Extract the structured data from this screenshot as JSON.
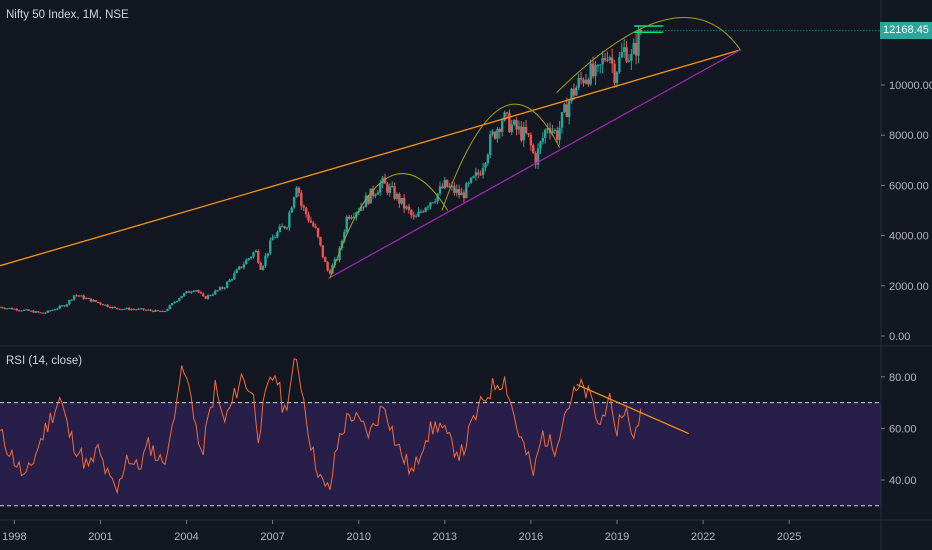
{
  "symbol_title": "Nifty 50 Index, 1M, NSE",
  "indicator_title": "RSI (14, close)",
  "last_price": "12168.45",
  "colors": {
    "background": "#131722",
    "bull": "#26a69a",
    "bear": "#ef5350",
    "trendline_upper": "#f7931a",
    "trendline_lower": "#9c27b0",
    "arc": "#a0a020",
    "resistance": "#00e676",
    "rsi_line": "#f26b38",
    "rsi_band": "#2a1f4e",
    "price_badge": "#2aa79b"
  },
  "chart_data": [
    {
      "type": "candlestick",
      "title": "Nifty 50 Index, 1M, NSE",
      "x_ticks": [
        "1998",
        "2001",
        "2004",
        "2007",
        "2010",
        "2013",
        "2016",
        "2019",
        "2022",
        "2025"
      ],
      "y_ticks": [
        "0.00",
        "2000.00",
        "4000.00",
        "6000.00",
        "8000.00",
        "10000.00"
      ],
      "ylim": [
        0,
        13500
      ],
      "xlim": [
        1997.5,
        2028.2
      ],
      "last_value": 12168.45,
      "price_path": [
        [
          1997.5,
          1150
        ],
        [
          1998.5,
          1000
        ],
        [
          1999.0,
          900
        ],
        [
          1999.8,
          1250
        ],
        [
          2000.1,
          1650
        ],
        [
          2000.6,
          1450
        ],
        [
          2001.0,
          1300
        ],
        [
          2001.5,
          1100
        ],
        [
          2002.5,
          1050
        ],
        [
          2003.2,
          950
        ],
        [
          2003.8,
          1600
        ],
        [
          2004.3,
          1900
        ],
        [
          2004.6,
          1500
        ],
        [
          2005.3,
          1950
        ],
        [
          2006.0,
          2900
        ],
        [
          2006.4,
          3400
        ],
        [
          2006.6,
          2700
        ],
        [
          2007.0,
          3900
        ],
        [
          2007.5,
          4500
        ],
        [
          2007.85,
          6200
        ],
        [
          2008.0,
          5200
        ],
        [
          2008.5,
          4200
        ],
        [
          2008.8,
          3000
        ],
        [
          2008.95,
          2500
        ],
        [
          2009.3,
          3200
        ],
        [
          2009.6,
          4800
        ],
        [
          2010.0,
          5100
        ],
        [
          2010.8,
          6100
        ],
        [
          2011.2,
          5700
        ],
        [
          2011.7,
          5000
        ],
        [
          2011.95,
          4600
        ],
        [
          2012.3,
          5200
        ],
        [
          2012.7,
          5600
        ],
        [
          2013.0,
          6000
        ],
        [
          2013.6,
          5600
        ],
        [
          2014.2,
          6500
        ],
        [
          2014.6,
          7800
        ],
        [
          2015.0,
          8700
        ],
        [
          2015.4,
          8300
        ],
        [
          2015.9,
          7900
        ],
        [
          2016.15,
          7000
        ],
        [
          2016.6,
          8500
        ],
        [
          2016.9,
          8000
        ],
        [
          2017.4,
          9600
        ],
        [
          2017.95,
          10500
        ],
        [
          2018.3,
          10300
        ],
        [
          2018.7,
          11500
        ],
        [
          2018.9,
          10500
        ],
        [
          2019.3,
          11500
        ],
        [
          2019.5,
          11000
        ],
        [
          2019.7,
          11700
        ],
        [
          2019.85,
          12168.45
        ]
      ],
      "annotations": {
        "upper_trendline": [
          [
            1997.5,
            2800
          ],
          [
            2023.3,
            11400
          ]
        ],
        "lower_trendline": [
          [
            2008.95,
            2300
          ],
          [
            2023.3,
            11400
          ]
        ],
        "arcs": [
          [
            [
              2009.0,
              2300
            ],
            [
              2011.0,
              6300
            ],
            [
              2013.1,
              5000
            ]
          ],
          [
            [
              2012.9,
              5000
            ],
            [
              2015.0,
              9100
            ],
            [
              2017.0,
              7500
            ]
          ],
          [
            [
              2016.9,
              9700
            ],
            [
              2020.7,
              12600
            ],
            [
              2023.3,
              11400
            ]
          ]
        ],
        "resistance": [
          [
            2019.6,
            12350
          ],
          [
            2020.6,
            12350
          ],
          [
            2019.6,
            12100
          ],
          [
            2020.6,
            12100
          ]
        ]
      }
    },
    {
      "type": "line",
      "title": "RSI (14, close)",
      "y_ticks": [
        "40.00",
        "60.00",
        "80.00"
      ],
      "ylim": [
        25,
        92
      ],
      "xlim": [
        1997.5,
        2028.2
      ],
      "bands": [
        30,
        70
      ],
      "rsi_path": [
        [
          1997.5,
          58
        ],
        [
          1997.9,
          50
        ],
        [
          1998.4,
          40
        ],
        [
          1998.9,
          55
        ],
        [
          1999.3,
          65
        ],
        [
          1999.6,
          72
        ],
        [
          1999.9,
          58
        ],
        [
          2000.3,
          50
        ],
        [
          2000.6,
          44
        ],
        [
          2000.9,
          52
        ],
        [
          2001.3,
          40
        ],
        [
          2001.6,
          35
        ],
        [
          2001.9,
          50
        ],
        [
          2002.3,
          44
        ],
        [
          2002.7,
          54
        ],
        [
          2003.1,
          47
        ],
        [
          2003.4,
          52
        ],
        [
          2003.7,
          78
        ],
        [
          2003.9,
          82
        ],
        [
          2004.2,
          71
        ],
        [
          2004.5,
          48
        ],
        [
          2004.7,
          60
        ],
        [
          2005.0,
          76
        ],
        [
          2005.3,
          62
        ],
        [
          2005.6,
          70
        ],
        [
          2005.9,
          80
        ],
        [
          2006.3,
          74
        ],
        [
          2006.5,
          58
        ],
        [
          2006.8,
          74
        ],
        [
          2007.1,
          82
        ],
        [
          2007.4,
          66
        ],
        [
          2007.6,
          76
        ],
        [
          2007.8,
          86
        ],
        [
          2007.95,
          81
        ],
        [
          2008.2,
          63
        ],
        [
          2008.4,
          50
        ],
        [
          2008.6,
          44
        ],
        [
          2008.8,
          36
        ],
        [
          2009.0,
          37
        ],
        [
          2009.3,
          56
        ],
        [
          2009.7,
          66
        ],
        [
          2010.0,
          62
        ],
        [
          2010.4,
          58
        ],
        [
          2010.9,
          70
        ],
        [
          2011.3,
          54
        ],
        [
          2011.6,
          48
        ],
        [
          2011.9,
          42
        ],
        [
          2012.3,
          57
        ],
        [
          2012.8,
          62
        ],
        [
          2013.2,
          54
        ],
        [
          2013.6,
          50
        ],
        [
          2014.0,
          63
        ],
        [
          2014.4,
          72
        ],
        [
          2014.8,
          78
        ],
        [
          2015.1,
          79
        ],
        [
          2015.5,
          61
        ],
        [
          2015.9,
          48
        ],
        [
          2016.1,
          42
        ],
        [
          2016.4,
          58
        ],
        [
          2016.8,
          52
        ],
        [
          2017.2,
          67
        ],
        [
          2017.5,
          73
        ],
        [
          2017.8,
          76
        ],
        [
          2018.1,
          71
        ],
        [
          2018.4,
          60
        ],
        [
          2018.7,
          74
        ],
        [
          2018.9,
          57
        ],
        [
          2019.1,
          64
        ],
        [
          2019.3,
          69
        ],
        [
          2019.5,
          56
        ],
        [
          2019.7,
          62
        ],
        [
          2019.85,
          66
        ]
      ],
      "annotations": {
        "rsi_trendline": [
          [
            2017.6,
            77
          ],
          [
            2021.5,
            58
          ]
        ]
      }
    }
  ]
}
